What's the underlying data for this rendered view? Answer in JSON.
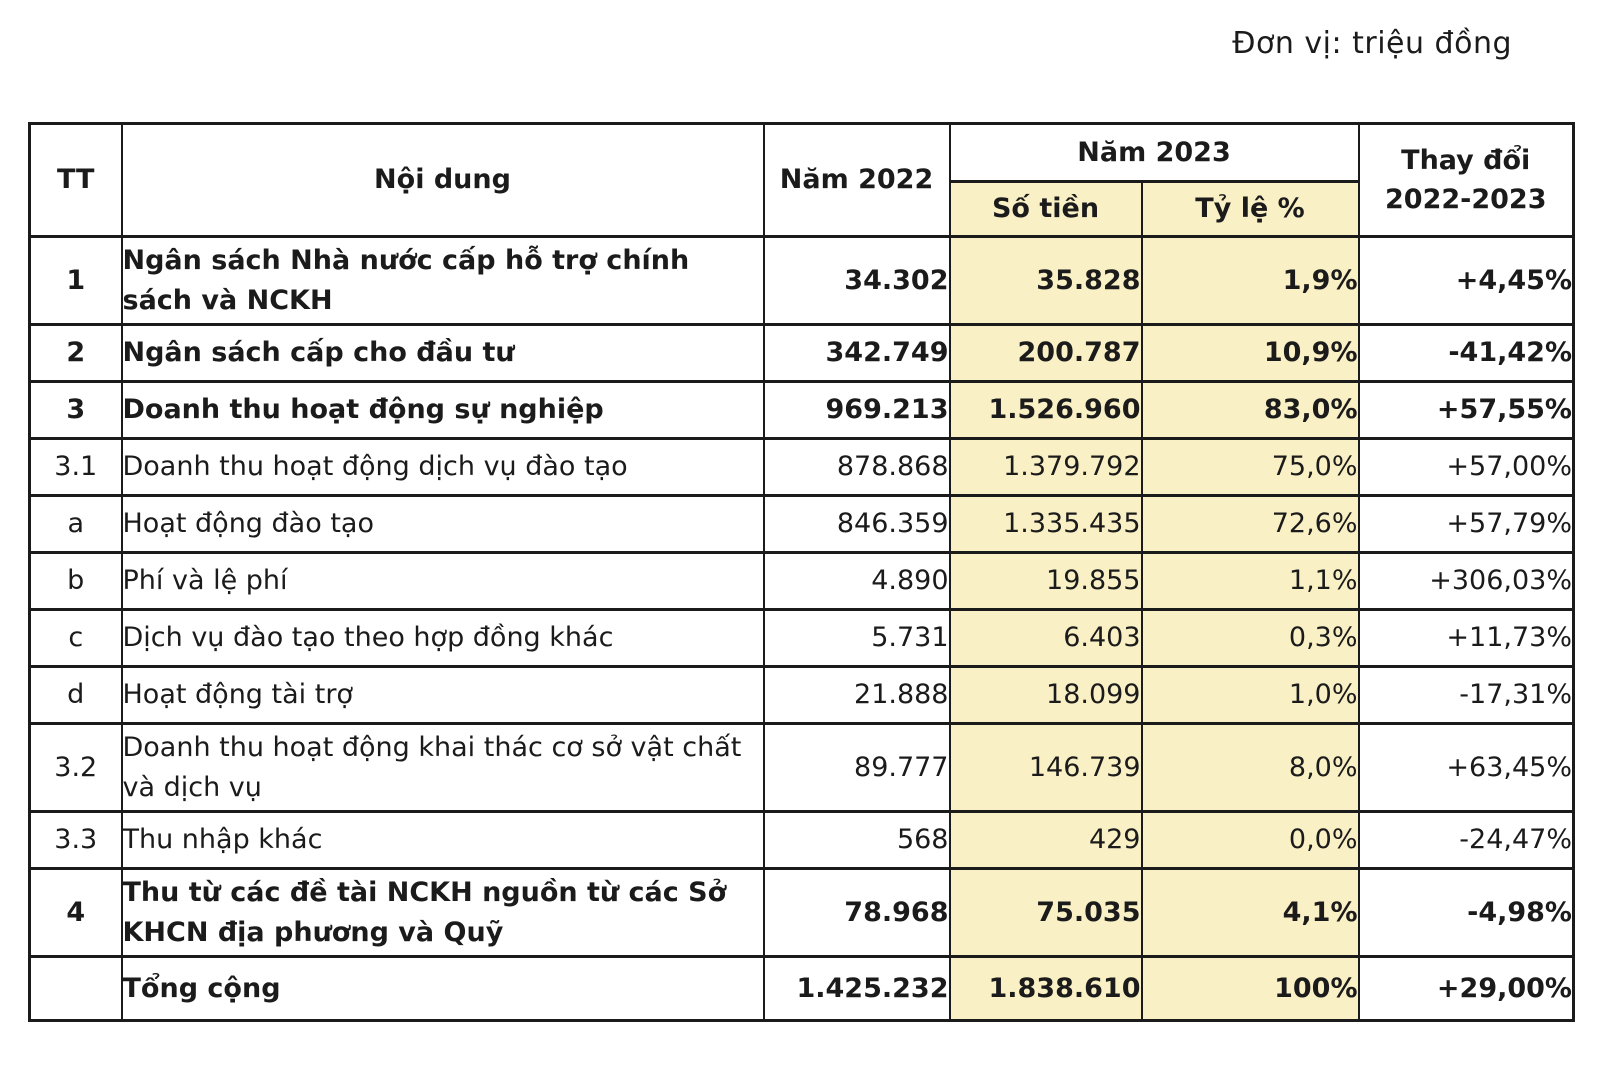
{
  "unit_note": "Đơn vị: triệu đồng",
  "colors": {
    "highlight": "#faf0c5",
    "border": "#1b1b1b",
    "text": "#1b1b1b",
    "background": "#ffffff"
  },
  "table": {
    "headers": {
      "tt": "TT",
      "content": "Nội dung",
      "year2022": "Năm 2022",
      "year2023": "Năm 2023",
      "amount": "Số tiền",
      "ratio": "Tỷ lệ %",
      "change_line1": "Thay đổi",
      "change_line2": "2022-2023"
    },
    "rows": [
      {
        "tt": "1",
        "label": "Ngân sách Nhà nước cấp hỗ trợ chính sách và NCKH",
        "y2022": "34.302",
        "so_tien": "35.828",
        "ty_le": "1,9%",
        "thay_doi": "+4,45%"
      },
      {
        "tt": "2",
        "label": "Ngân sách cấp cho đầu tư",
        "y2022": "342.749",
        "so_tien": "200.787",
        "ty_le": "10,9%",
        "thay_doi": "-41,42%"
      },
      {
        "tt": "3",
        "label": "Doanh thu hoạt động sự nghiệp",
        "y2022": "969.213",
        "so_tien": "1.526.960",
        "ty_le": "83,0%",
        "thay_doi": "+57,55%"
      },
      {
        "tt": "3.1",
        "label": "Doanh thu hoạt động dịch vụ đào tạo",
        "y2022": "878.868",
        "so_tien": "1.379.792",
        "ty_le": "75,0%",
        "thay_doi": "+57,00%"
      },
      {
        "tt": "a",
        "label": "Hoạt động đào tạo",
        "y2022": "846.359",
        "so_tien": "1.335.435",
        "ty_le": "72,6%",
        "thay_doi": "+57,79%"
      },
      {
        "tt": "b",
        "label": "Phí và lệ phí",
        "y2022": "4.890",
        "so_tien": "19.855",
        "ty_le": "1,1%",
        "thay_doi": "+306,03%"
      },
      {
        "tt": "c",
        "label": "Dịch vụ đào tạo theo hợp đồng khác",
        "y2022": "5.731",
        "so_tien": "6.403",
        "ty_le": "0,3%",
        "thay_doi": "+11,73%"
      },
      {
        "tt": "d",
        "label": "Hoạt động tài trợ",
        "y2022": "21.888",
        "so_tien": "18.099",
        "ty_le": "1,0%",
        "thay_doi": "-17,31%"
      },
      {
        "tt": "3.2",
        "label": "Doanh thu hoạt động khai thác cơ sở vật chất và dịch vụ",
        "y2022": "89.777",
        "so_tien": "146.739",
        "ty_le": "8,0%",
        "thay_doi": "+63,45%"
      },
      {
        "tt": "3.3",
        "label": "Thu nhập khác",
        "y2022": "568",
        "so_tien": "429",
        "ty_le": "0,0%",
        "thay_doi": "-24,47%"
      },
      {
        "tt": "4",
        "label": "Thu từ các đề tài NCKH nguồn từ các Sở KHCN địa phương và Quỹ",
        "y2022": "78.968",
        "so_tien": "75.035",
        "ty_le": "4,1%",
        "thay_doi": "-4,98%"
      },
      {
        "tt": "",
        "label": "Tổng cộng",
        "y2022": "1.425.232",
        "so_tien": "1.838.610",
        "ty_le": "100%",
        "thay_doi": "+29,00%"
      }
    ]
  }
}
